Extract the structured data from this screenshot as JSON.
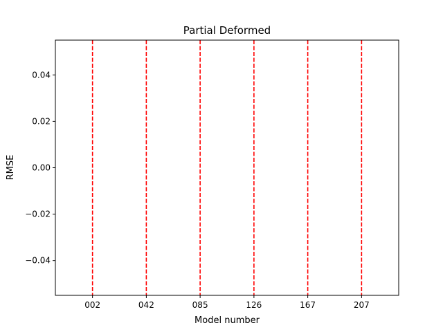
{
  "chart_data": {
    "type": "line",
    "title": "Partial Deformed",
    "xlabel": "Model number",
    "ylabel": "RMSE",
    "categories": [
      "002",
      "042",
      "085",
      "126",
      "167",
      "207"
    ],
    "x_positions": [
      0,
      1,
      2,
      3,
      4,
      5
    ],
    "xlim": [
      -0.69,
      5.69
    ],
    "ylim": [
      -0.055,
      0.055
    ],
    "yticks": [
      -0.04,
      -0.02,
      0.0,
      0.02,
      0.04
    ],
    "ytick_labels": [
      "−0.04",
      "−0.02",
      "0.00",
      "0.02",
      "0.04"
    ],
    "series": [],
    "vertical_lines": {
      "x": [
        0,
        1,
        2,
        3,
        4,
        5
      ],
      "color": "#ff0000",
      "style": "dashed"
    },
    "grid": false,
    "legend": "none"
  }
}
